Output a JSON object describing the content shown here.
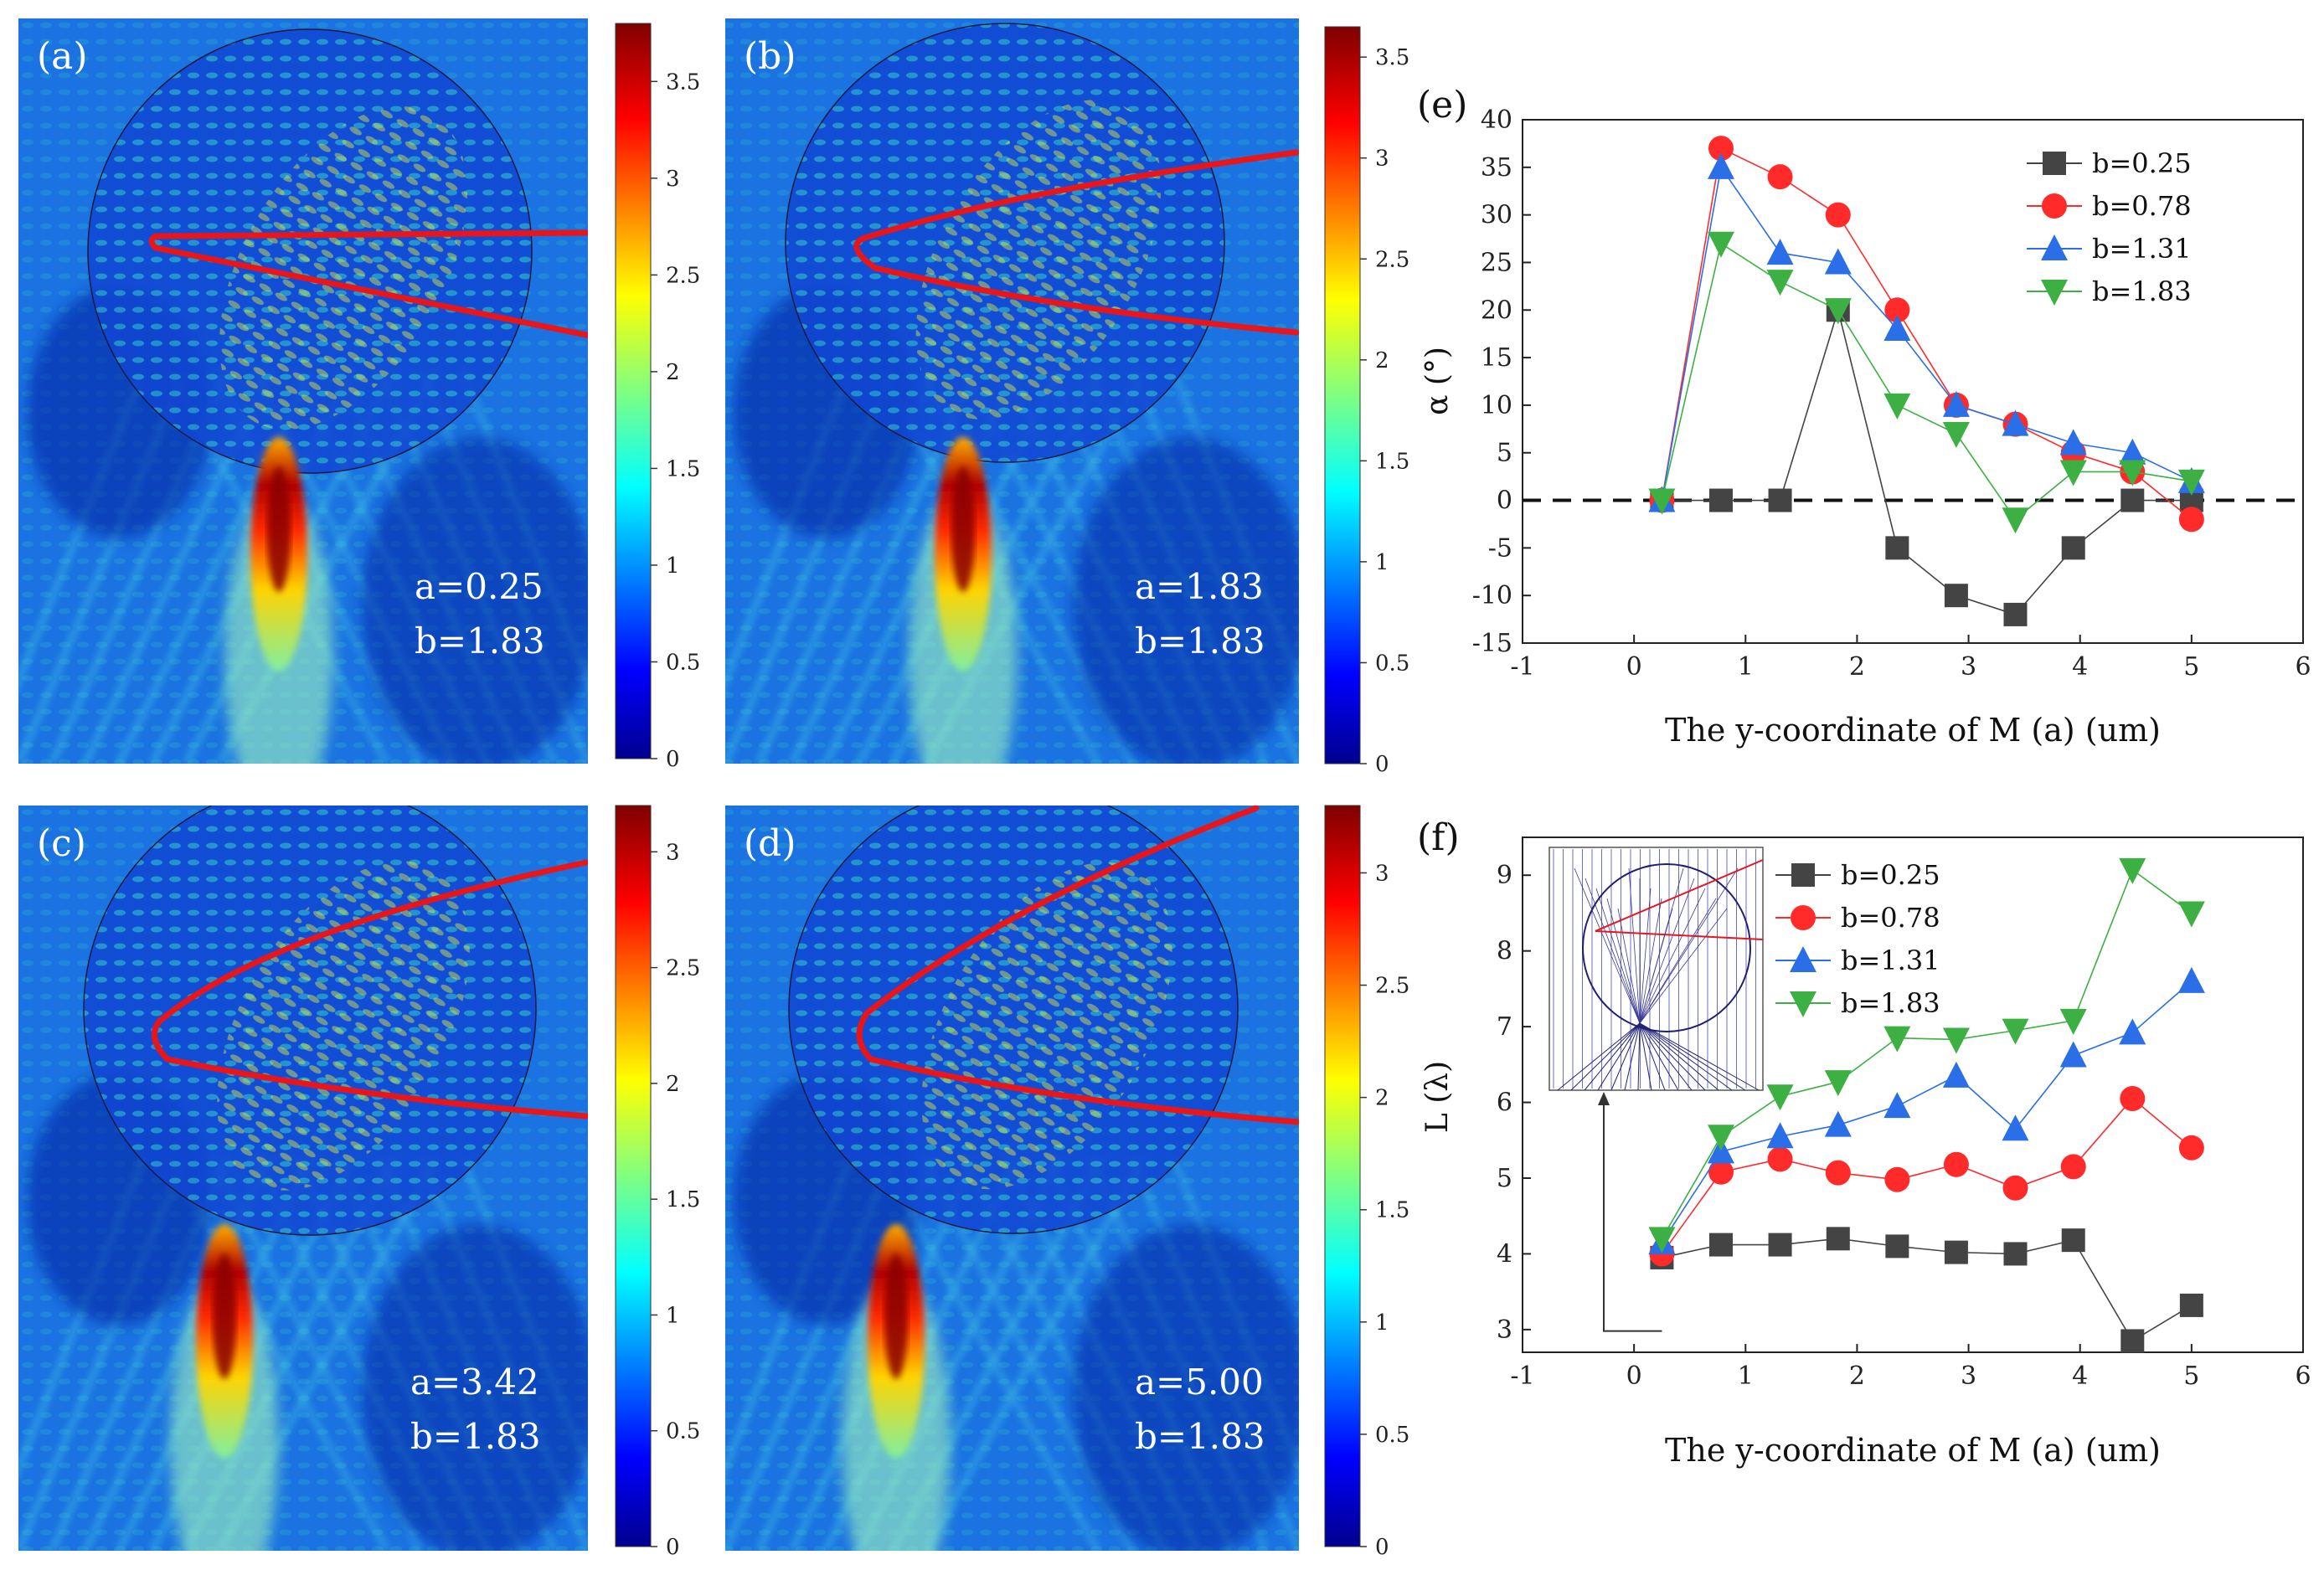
{
  "chart_data": [
    {
      "id": "a",
      "type": "heatmap",
      "panel_label": "(a)",
      "annotations": [
        "a=0.25",
        "b=1.83"
      ],
      "colorbar": {
        "min": 0,
        "max": 3.8,
        "ticks": [
          0,
          0.5,
          1,
          1.5,
          2,
          2.5,
          3,
          3.5
        ],
        "tick_labels": [
          "0",
          "0.5",
          "1",
          "1.5",
          "2",
          "2.5",
          "3",
          "3.5"
        ]
      }
    },
    {
      "id": "b",
      "type": "heatmap",
      "panel_label": "(b)",
      "annotations": [
        "a=1.83",
        "b=1.83"
      ],
      "colorbar": {
        "min": 0,
        "max": 3.65,
        "ticks": [
          0,
          0.5,
          1,
          1.5,
          2,
          2.5,
          3,
          3.5
        ],
        "tick_labels": [
          "0",
          "0.5",
          "1",
          "1.5",
          "2",
          "2.5",
          "3",
          "3.5"
        ]
      }
    },
    {
      "id": "c",
      "type": "heatmap",
      "panel_label": "(c)",
      "annotations": [
        "a=3.42",
        "b=1.83"
      ],
      "colorbar": {
        "min": 0,
        "max": 3.2,
        "ticks": [
          0,
          0.5,
          1,
          1.5,
          2,
          2.5,
          3
        ],
        "tick_labels": [
          "0",
          "0.5",
          "1",
          "1.5",
          "2",
          "2.5",
          "3"
        ]
      }
    },
    {
      "id": "d",
      "type": "heatmap",
      "panel_label": "(d)",
      "annotations": [
        "a=5.00",
        "b=1.83"
      ],
      "colorbar": {
        "min": 0,
        "max": 3.3,
        "ticks": [
          0,
          0.5,
          1,
          1.5,
          2,
          2.5,
          3
        ],
        "tick_labels": [
          "0",
          "0.5",
          "1",
          "1.5",
          "2",
          "2.5",
          "3"
        ]
      }
    },
    {
      "id": "e",
      "type": "line",
      "panel_label": "(e)",
      "xlabel": "The y-coordinate of M (a) (um)",
      "ylabel": "α (°)",
      "xlim": [
        -1,
        6
      ],
      "ylim": [
        -15,
        40
      ],
      "xticks": [
        -1,
        0,
        1,
        2,
        3,
        4,
        5,
        6
      ],
      "yticks": [
        -15,
        -10,
        -5,
        0,
        5,
        10,
        15,
        20,
        25,
        30,
        35,
        40
      ],
      "x": [
        0.25,
        0.78,
        1.31,
        1.83,
        2.36,
        2.89,
        3.42,
        3.94,
        4.47,
        5.0
      ],
      "reference_line": {
        "y": 0,
        "style": "dashed"
      },
      "series": [
        {
          "name": "b=0.25",
          "color": "#444444",
          "marker": "square",
          "values": [
            0,
            0,
            0,
            20,
            -5,
            -10,
            -12,
            -5,
            0,
            0
          ]
        },
        {
          "name": "b=0.78",
          "color": "#ff2a2a",
          "marker": "circle",
          "values": [
            0,
            37,
            34,
            30,
            20,
            10,
            8,
            5,
            3,
            -2
          ]
        },
        {
          "name": "b=1.31",
          "color": "#2a6ee8",
          "marker": "triangle-up",
          "values": [
            0,
            35,
            26,
            25,
            18,
            10,
            8,
            6,
            5,
            2
          ]
        },
        {
          "name": "b=1.83",
          "color": "#3cb043",
          "marker": "triangle-down",
          "values": [
            0,
            27,
            23,
            20,
            10,
            7,
            -2,
            3,
            3,
            2
          ]
        }
      ]
    },
    {
      "id": "f",
      "type": "line",
      "panel_label": "(f)",
      "xlabel": "The y-coordinate of M (a) (um)",
      "ylabel": "L (λ)",
      "xlim": [
        -1,
        6
      ],
      "ylim": [
        2.7,
        9.5
      ],
      "xticks": [
        -1,
        0,
        1,
        2,
        3,
        4,
        5,
        6
      ],
      "yticks": [
        3,
        4,
        5,
        6,
        7,
        8,
        9
      ],
      "x": [
        0.25,
        0.78,
        1.31,
        1.83,
        2.36,
        2.89,
        3.42,
        3.94,
        4.47,
        5.0
      ],
      "series": [
        {
          "name": "b=0.25",
          "color": "#444444",
          "marker": "square",
          "values": [
            3.95,
            4.12,
            4.12,
            4.2,
            4.1,
            4.02,
            4.0,
            4.18,
            2.85,
            3.32
          ]
        },
        {
          "name": "b=0.78",
          "color": "#ff2a2a",
          "marker": "circle",
          "values": [
            4.0,
            5.08,
            5.25,
            5.07,
            4.98,
            5.18,
            4.87,
            5.15,
            6.05,
            5.4
          ]
        },
        {
          "name": "b=1.31",
          "color": "#2a6ee8",
          "marker": "triangle-up",
          "values": [
            4.15,
            5.35,
            5.55,
            5.7,
            5.95,
            6.35,
            5.65,
            6.62,
            6.92,
            7.6
          ]
        },
        {
          "name": "b=1.83",
          "color": "#3cb043",
          "marker": "triangle-down",
          "values": [
            4.2,
            5.55,
            6.08,
            6.27,
            6.85,
            6.83,
            6.95,
            7.08,
            9.07,
            8.5
          ]
        }
      ]
    }
  ]
}
